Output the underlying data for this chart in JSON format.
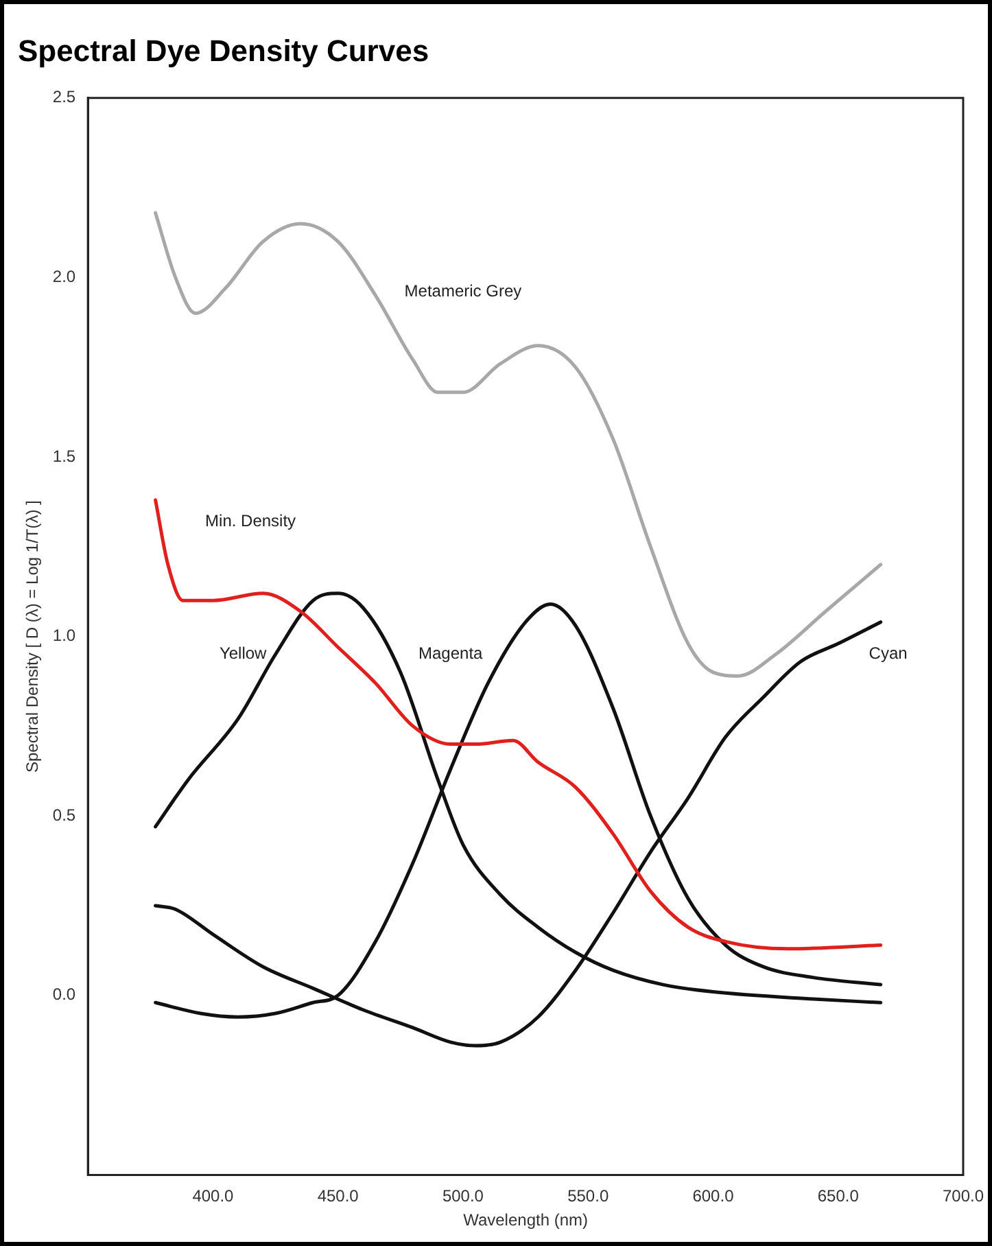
{
  "chart_data": {
    "type": "line",
    "title": "Spectral Dye Density Curves",
    "xlabel": "Wavelength (nm)",
    "ylabel": "Spectral Density [ D (λ) = Log 1/T(λ) ]",
    "xlim": [
      350,
      700
    ],
    "ylim": [
      -0.5,
      2.5
    ],
    "xticks": [
      {
        "value": 400,
        "label": "400.0"
      },
      {
        "value": 450,
        "label": "450.0"
      },
      {
        "value": 500,
        "label": "500.0"
      },
      {
        "value": 550,
        "label": "550.0"
      },
      {
        "value": 600,
        "label": "600.0"
      },
      {
        "value": 650,
        "label": "650.0"
      },
      {
        "value": 700,
        "label": "700.0"
      }
    ],
    "yticks": [
      {
        "value": 0,
        "label": "0.0"
      },
      {
        "value": 0.5,
        "label": "0.5"
      },
      {
        "value": 1,
        "label": "1.0"
      },
      {
        "value": 1.5,
        "label": "1.5"
      },
      {
        "value": 2,
        "label": "2.0"
      },
      {
        "value": 2.5,
        "label": "2.5"
      }
    ],
    "grid": false,
    "legend": false,
    "marker": "none",
    "line_style": "solid",
    "series": [
      {
        "name": "Metameric Grey",
        "color": "#a8a8a8",
        "x": [
          377,
          385,
          393,
          405,
          420,
          435,
          450,
          465,
          480,
          490,
          500,
          515,
          530,
          545,
          560,
          575,
          590,
          600,
          610,
          625,
          645,
          667
        ],
        "values": [
          2.18,
          2.0,
          1.9,
          1.97,
          2.1,
          2.15,
          2.1,
          1.95,
          1.77,
          1.68,
          1.68,
          1.76,
          1.81,
          1.75,
          1.55,
          1.25,
          0.98,
          0.9,
          0.89,
          0.95,
          1.07,
          1.2
        ]
      },
      {
        "name": "Min. Density",
        "color": "#e0201c",
        "x": [
          377,
          382,
          388,
          400,
          420,
          435,
          450,
          465,
          480,
          495,
          505,
          520,
          530,
          545,
          560,
          575,
          590,
          605,
          630,
          667
        ],
        "values": [
          1.38,
          1.2,
          1.1,
          1.1,
          1.12,
          1.07,
          0.97,
          0.87,
          0.75,
          0.7,
          0.7,
          0.71,
          0.65,
          0.58,
          0.45,
          0.29,
          0.19,
          0.15,
          0.13,
          0.14
        ]
      },
      {
        "name": "Yellow",
        "color": "#111111",
        "x": [
          377,
          390,
          410,
          425,
          440,
          450,
          460,
          475,
          490,
          500,
          515,
          530,
          545,
          560,
          580,
          600,
          640,
          667
        ],
        "values": [
          0.47,
          0.6,
          0.77,
          0.95,
          1.1,
          1.12,
          1.08,
          0.9,
          0.6,
          0.42,
          0.28,
          0.19,
          0.12,
          0.07,
          0.03,
          0.01,
          -0.01,
          -0.02
        ]
      },
      {
        "name": "Magenta",
        "color": "#111111",
        "x": [
          377,
          395,
          410,
          425,
          440,
          450,
          465,
          480,
          495,
          510,
          525,
          535,
          545,
          560,
          575,
          590,
          605,
          620,
          640,
          667
        ],
        "values": [
          -0.02,
          -0.05,
          -0.06,
          -0.05,
          -0.02,
          0.0,
          0.15,
          0.37,
          0.63,
          0.87,
          1.04,
          1.09,
          1.03,
          0.8,
          0.5,
          0.27,
          0.14,
          0.08,
          0.05,
          0.03
        ]
      },
      {
        "name": "Cyan",
        "color": "#111111",
        "x": [
          377,
          385,
          400,
          420,
          440,
          460,
          480,
          495,
          505,
          515,
          530,
          545,
          560,
          575,
          590,
          605,
          620,
          635,
          650,
          667
        ],
        "values": [
          0.25,
          0.24,
          0.17,
          0.08,
          0.02,
          -0.04,
          -0.09,
          -0.13,
          -0.14,
          -0.13,
          -0.06,
          0.07,
          0.23,
          0.4,
          0.55,
          0.72,
          0.83,
          0.93,
          0.98,
          1.04
        ]
      }
    ]
  }
}
